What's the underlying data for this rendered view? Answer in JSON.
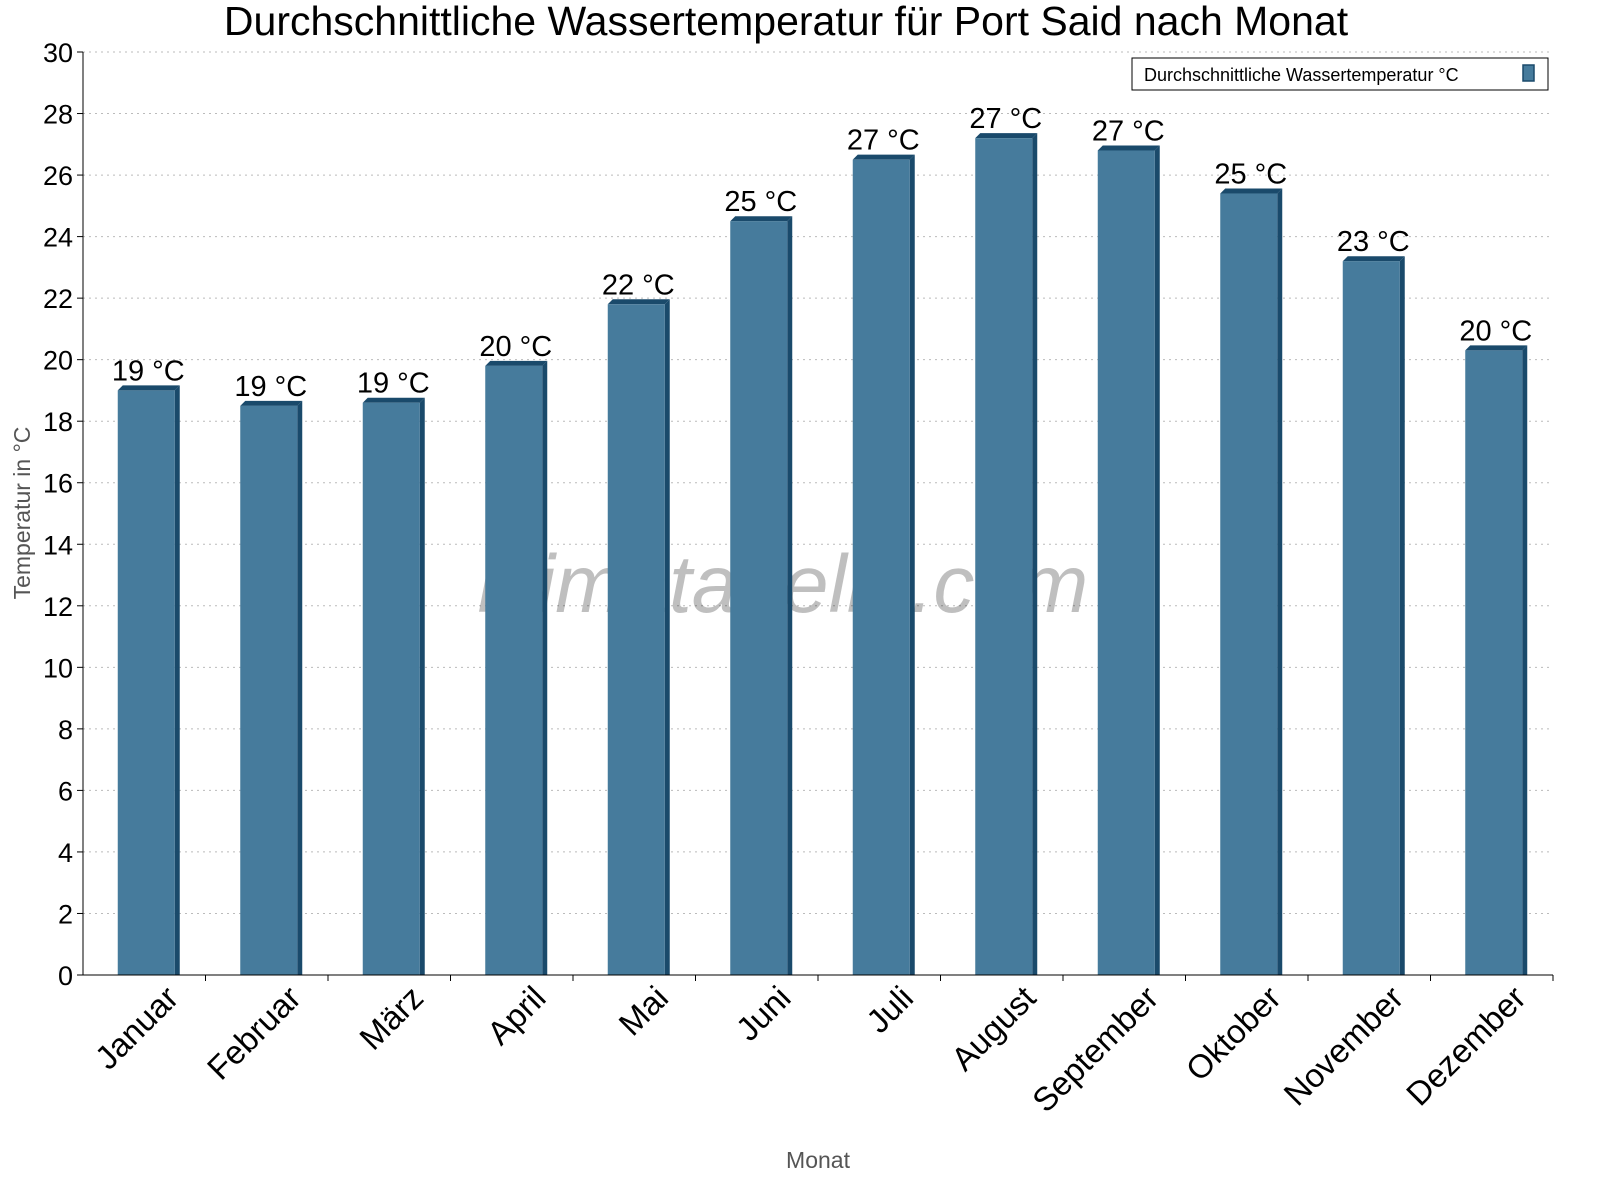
{
  "chart_data": {
    "type": "bar",
    "title": "Durchschnittliche Wassertemperatur für Port Said nach Monat",
    "xlabel": "Monat",
    "ylabel": "Temperatur in °C",
    "categories": [
      "Januar",
      "Februar",
      "März",
      "April",
      "Mai",
      "Juni",
      "Juli",
      "August",
      "September",
      "Oktober",
      "November",
      "Dezember"
    ],
    "series": [
      {
        "name": "Durchschnittliche Wassertemperatur °C",
        "values": [
          19.0,
          18.5,
          18.6,
          19.8,
          21.8,
          24.5,
          26.5,
          27.2,
          26.8,
          25.4,
          23.2,
          20.3
        ],
        "labels": [
          "19 °C",
          "19 °C",
          "19 °C",
          "20 °C",
          "22 °C",
          "25 °C",
          "27 °C",
          "27 °C",
          "27 °C",
          "25 °C",
          "23 °C",
          "20 °C"
        ]
      }
    ],
    "ylim": [
      0,
      30
    ],
    "yticks": [
      0,
      2,
      4,
      6,
      8,
      10,
      12,
      14,
      16,
      18,
      20,
      22,
      24,
      26,
      28,
      30
    ],
    "grid": true,
    "legend_position": "top-right",
    "colors": {
      "bar": "#467b9c",
      "bar_dark": "#1a4a6b"
    },
    "watermark": "klimatabelle.com"
  }
}
